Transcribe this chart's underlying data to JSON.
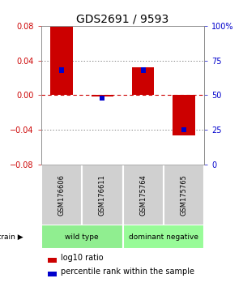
{
  "title": "GDS2691 / 9593",
  "samples": [
    "GSM176606",
    "GSM176611",
    "GSM175764",
    "GSM175765"
  ],
  "log10_ratio": [
    0.079,
    -0.002,
    0.032,
    -0.047
  ],
  "percentile_rank": [
    0.68,
    0.48,
    0.68,
    0.25
  ],
  "groups": [
    {
      "label": "wild type",
      "samples": [
        0,
        1
      ],
      "color": "#90EE90"
    },
    {
      "label": "dominant negative",
      "samples": [
        2,
        3
      ],
      "color": "#98FB98"
    }
  ],
  "ylim": [
    -0.08,
    0.08
  ],
  "yticks_left": [
    -0.08,
    -0.04,
    0,
    0.04,
    0.08
  ],
  "yticks_right": [
    0,
    25,
    50,
    75,
    100
  ],
  "bar_color_red": "#CC0000",
  "bar_color_blue": "#0000CC",
  "hline_color_red": "#CC0000",
  "hline_color_black": "#555555",
  "title_fontsize": 10,
  "tick_fontsize": 7,
  "bar_width": 0.55,
  "blue_bar_width": 0.12
}
